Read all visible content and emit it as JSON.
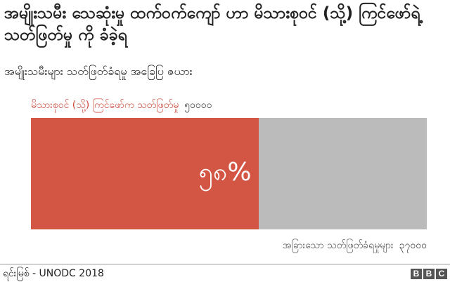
{
  "title": "အမျိုးသမီး သေဆုံးမှု ထက်ဝက်ကျော် ဟာ မိသားစုဝင် (သို့) ကြင်ဖော်ရဲ့ သတ်ဖြတ်မှု ကို ခံခဲ့ရ",
  "subtitle": "အမျိုးသမီးများ သတ်ဖြတ်ခံရမှု အခြေပြ ဇယား",
  "segments": [
    {
      "label": "မိသားစုဝင် (သို့) ကြင်ဖော်က သတ်ဖြတ်မှု",
      "value_text": "၅၀၀၀၀",
      "percent_text": "၅၈%",
      "color": "#d35645"
    },
    {
      "label": "အခြားသော သတ်ဖြတ်ခံရမှုများ",
      "value_text": "၃၇၀၀၀",
      "color": "#bbbbbb"
    }
  ],
  "source": "ရင်းမြစ် - UNODC 2018",
  "logo": [
    "B",
    "B",
    "C"
  ],
  "chart_data": {
    "type": "bar",
    "orientation": "horizontal-stacked-100",
    "title": "အမျိုးသမီး သေဆုံးမှု ထက်ဝက်ကျော် ဟာ မိသားစုဝင် (သို့) ကြင်ဖော်ရဲ့ သတ်ဖြတ်မှု ကို ခံခဲ့ရ",
    "subtitle": "အမျိုးသမီးများ သတ်ဖြတ်ခံရမှု အခြေပြ ဇယား",
    "categories": [
      "မိသားစုဝင် (သို့) ကြင်ဖော်က သတ်ဖြတ်မှု",
      "အခြားသော သတ်ဖြတ်ခံရမှုများ"
    ],
    "values": [
      50000,
      37000
    ],
    "percent_labels": [
      "၅၈%"
    ],
    "percent": [
      58,
      42
    ],
    "colors": [
      "#d35645",
      "#bbbbbb"
    ],
    "source": "UNODC 2018",
    "grid": false
  }
}
